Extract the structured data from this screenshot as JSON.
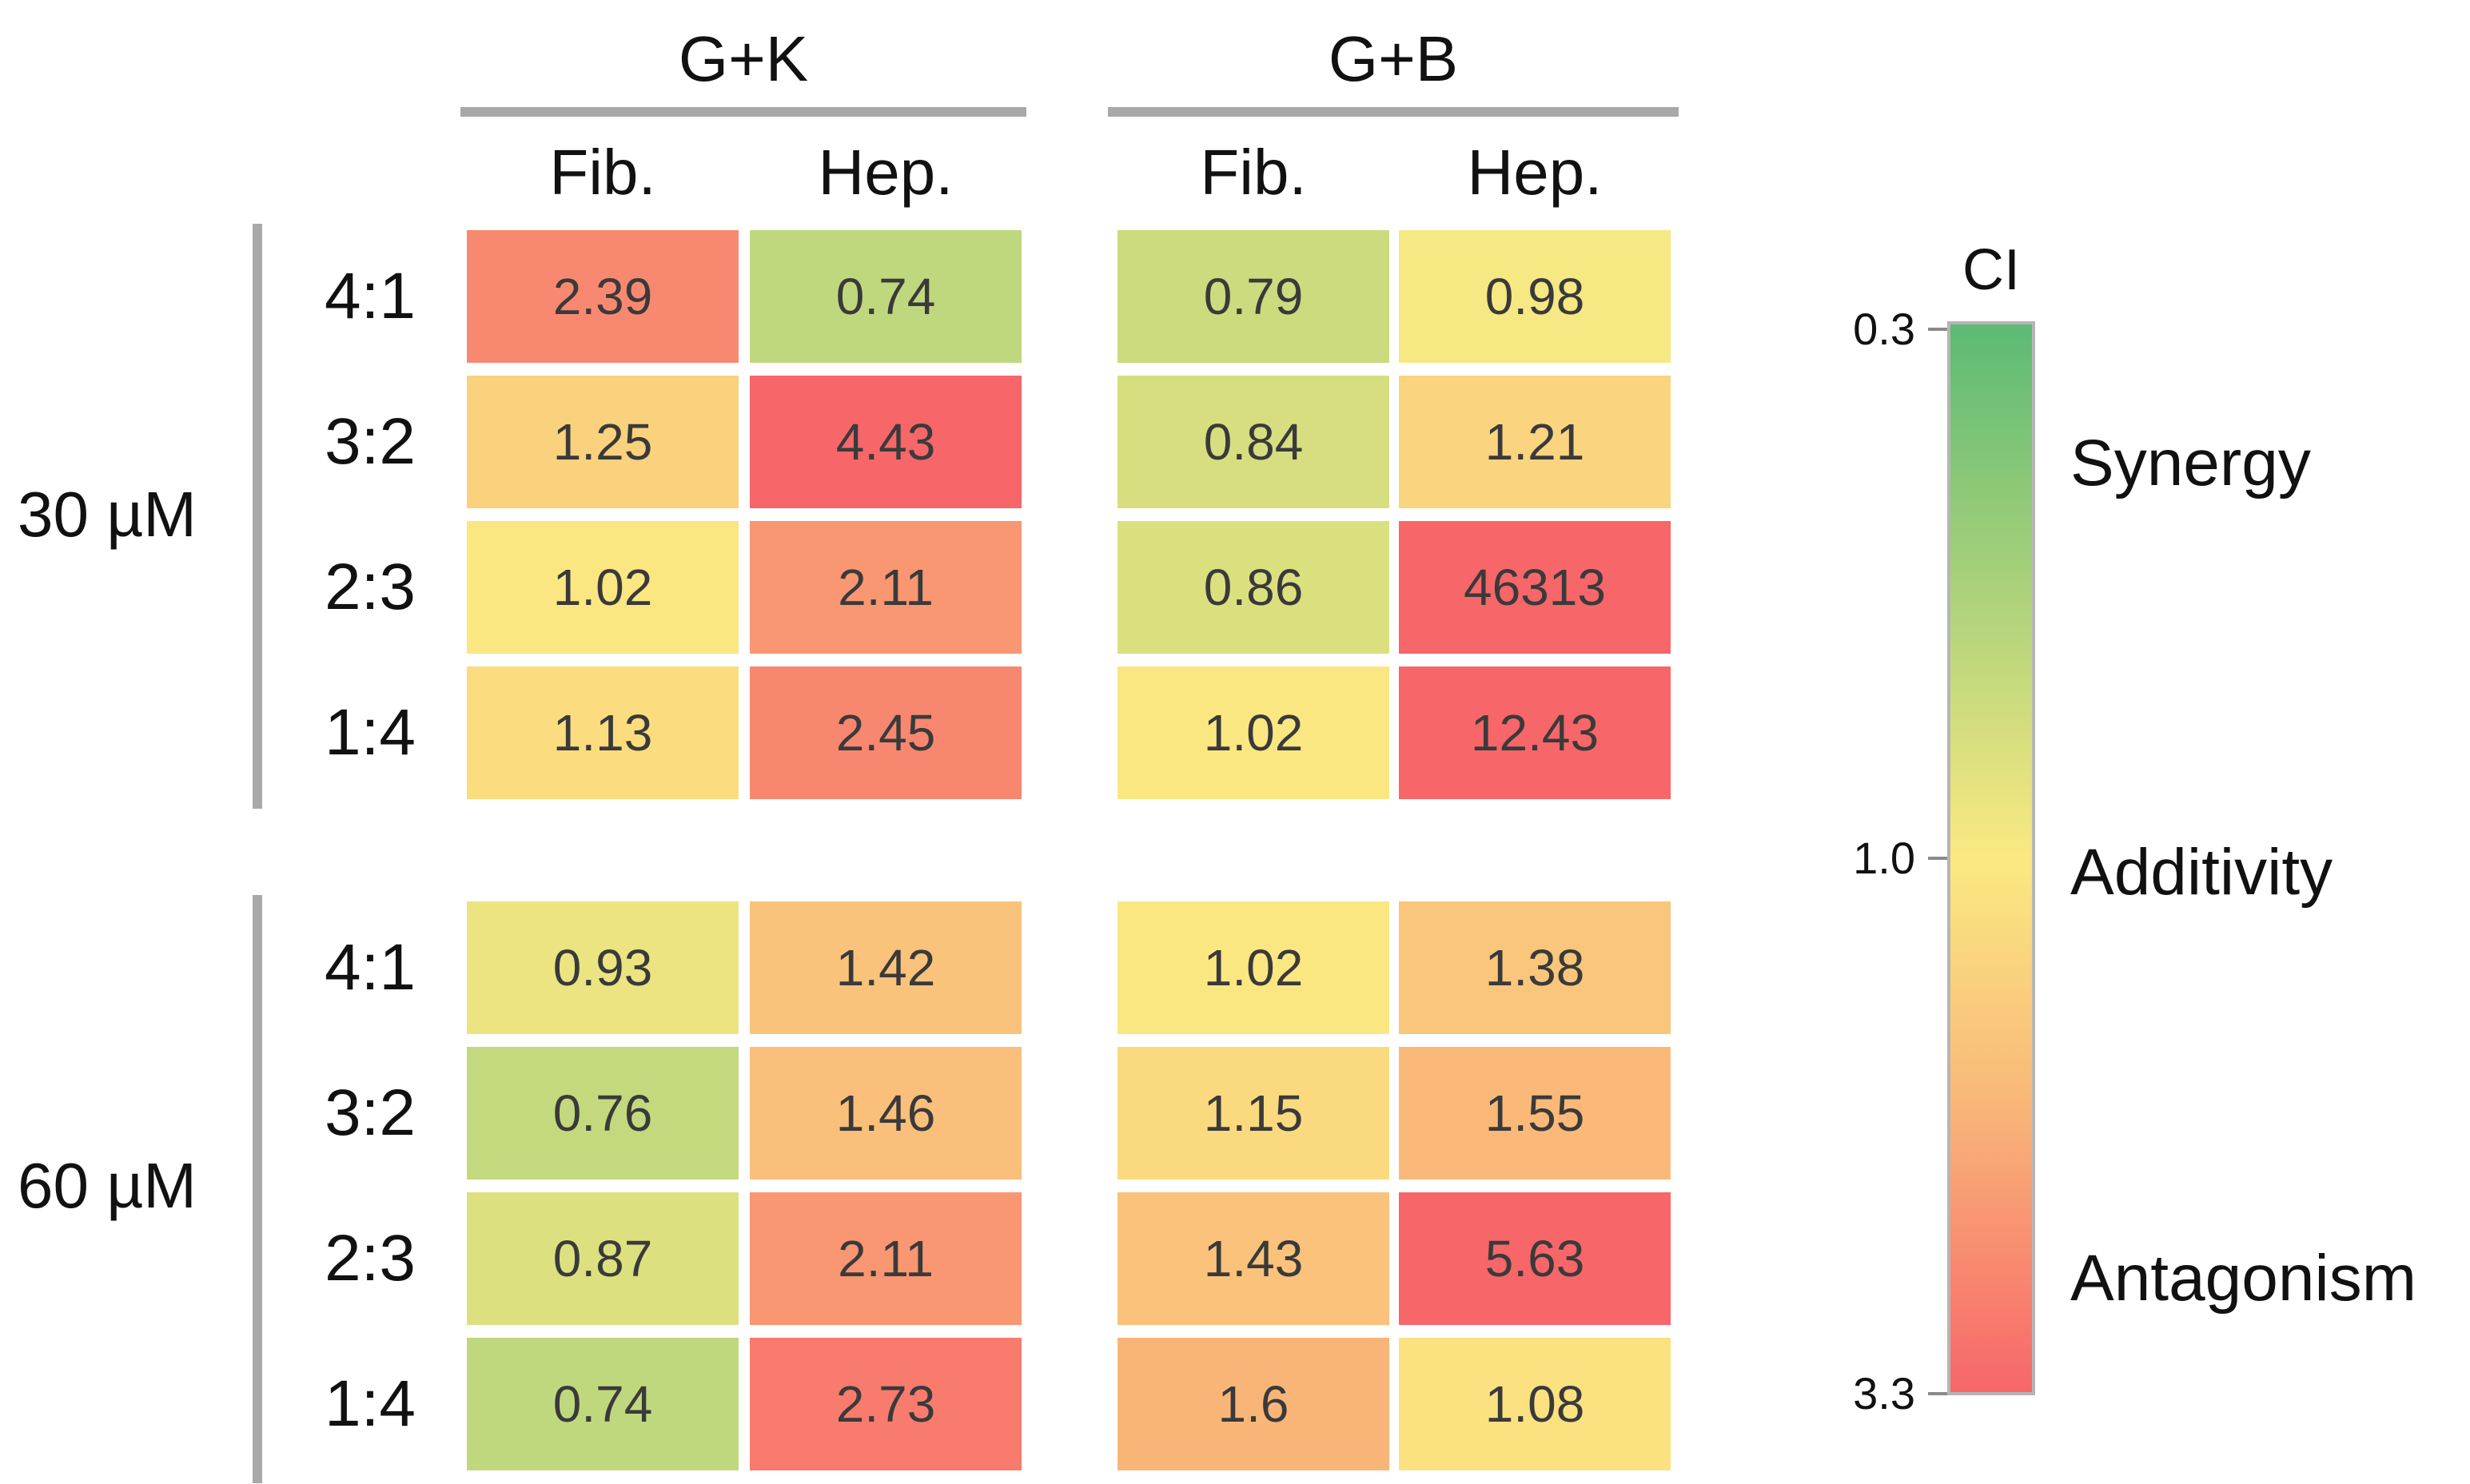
{
  "chart_data": {
    "type": "heatmap",
    "groups": [
      {
        "name": "G+K",
        "columns": [
          "Fib.",
          "Hep."
        ]
      },
      {
        "name": "G+B",
        "columns": [
          "Fib.",
          "Hep."
        ]
      }
    ],
    "blocks": [
      {
        "concentration": "30 µM",
        "rows": [
          "4:1",
          "3:2",
          "2:3",
          "1:4"
        ],
        "values": [
          [
            2.39,
            0.74,
            0.79,
            0.98
          ],
          [
            1.25,
            4.43,
            0.84,
            1.21
          ],
          [
            1.02,
            2.11,
            0.86,
            46313
          ],
          [
            1.13,
            2.45,
            1.02,
            12.43
          ]
        ],
        "labels": [
          [
            "2.39",
            "0.74",
            "0.79",
            "0.98"
          ],
          [
            "1.25",
            "4.43",
            "0.84",
            "1.21"
          ],
          [
            "1.02",
            "2.11",
            "0.86",
            "46313"
          ],
          [
            "1.13",
            "2.45",
            "1.02",
            "12.43"
          ]
        ]
      },
      {
        "concentration": "60 µM",
        "rows": [
          "4:1",
          "3:2",
          "2:3",
          "1:4"
        ],
        "values": [
          [
            0.93,
            1.42,
            1.02,
            1.38
          ],
          [
            0.76,
            1.46,
            1.15,
            1.55
          ],
          [
            0.87,
            2.11,
            1.43,
            5.63
          ],
          [
            0.74,
            2.73,
            1.6,
            1.08
          ]
        ],
        "labels": [
          [
            "0.93",
            "1.42",
            "1.02",
            "1.38"
          ],
          [
            "0.76",
            "1.46",
            "1.15",
            "1.55"
          ],
          [
            "0.87",
            "2.11",
            "1.43",
            "5.63"
          ],
          [
            "0.74",
            "2.73",
            "1.6",
            "1.08"
          ]
        ]
      }
    ],
    "colorbar": {
      "title": "CI",
      "range": [
        0.3,
        3.3
      ],
      "ticks": [
        "0.3",
        "1.0",
        "3.3"
      ],
      "categories": [
        "Synergy",
        "Additivity",
        "Antagonism"
      ],
      "colors": {
        "low": "#5cba74",
        "mid": "#fbe982",
        "high": "#f76669"
      }
    }
  }
}
